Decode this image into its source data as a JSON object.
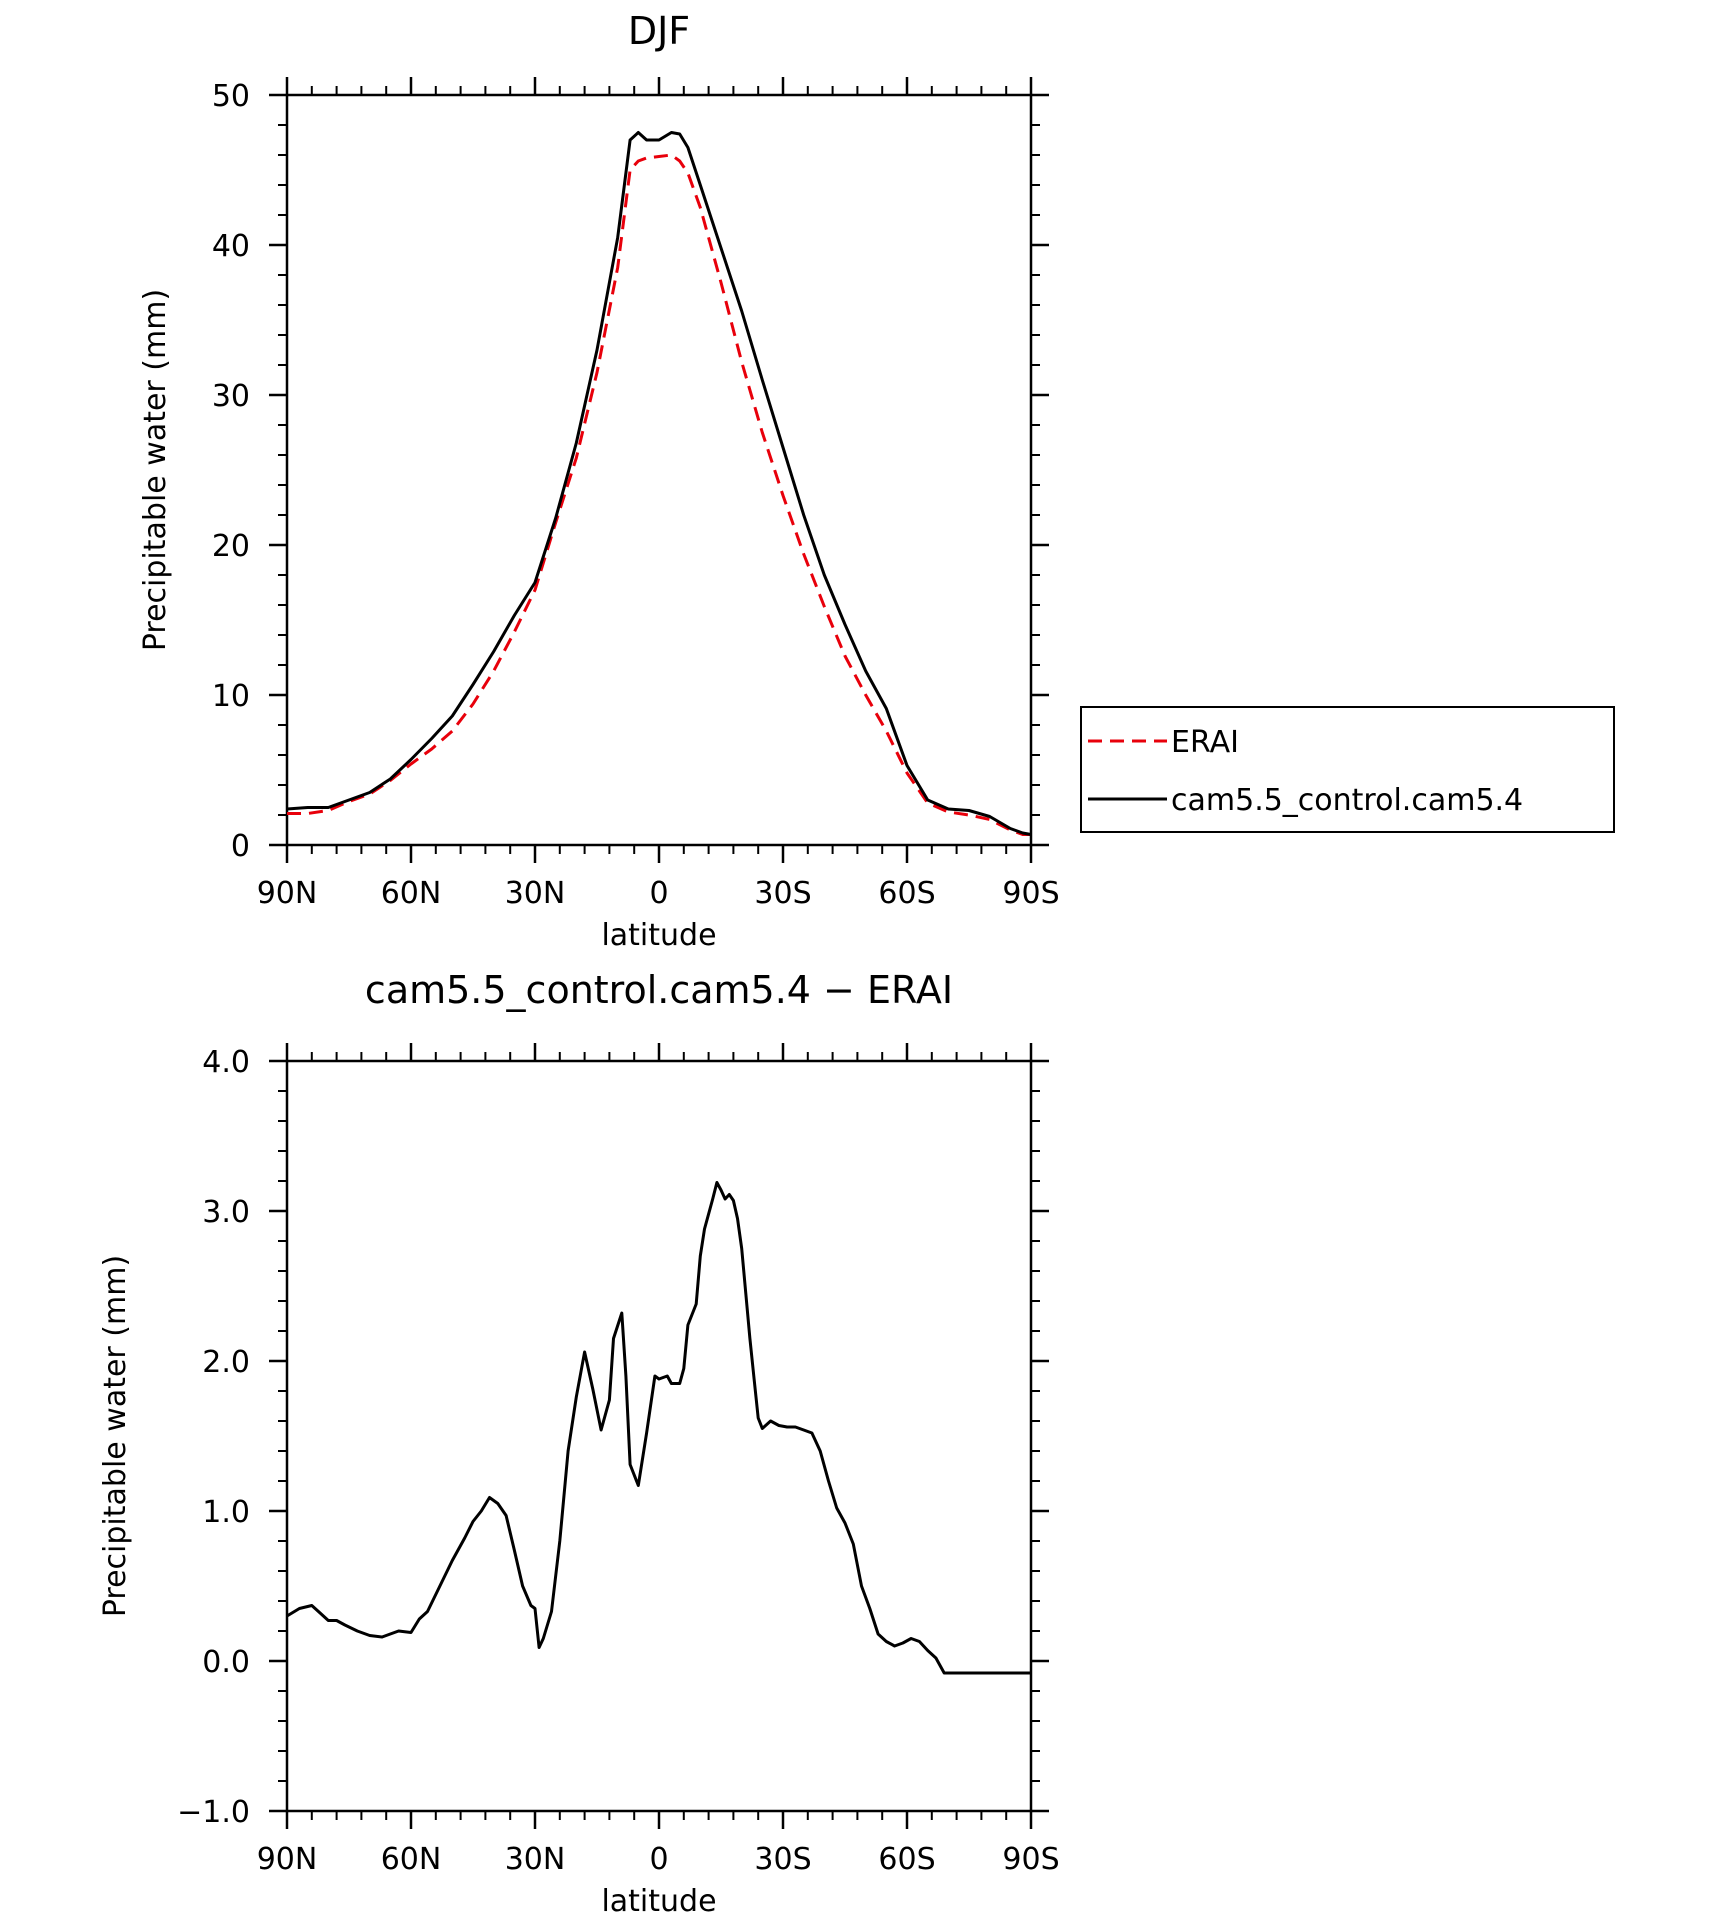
{
  "chart_data": [
    {
      "type": "line",
      "title": "DJF",
      "xlabel": "latitude",
      "ylabel": "Precipitable water (mm)",
      "xlim": [
        90,
        -90
      ],
      "ylim": [
        0,
        50
      ],
      "x_ticks": [
        90,
        60,
        30,
        0,
        -30,
        -60,
        -90
      ],
      "x_tick_labels": [
        "90N",
        "60N",
        "30N",
        "0",
        "30S",
        "60S",
        "90S"
      ],
      "y_ticks": [
        0,
        10,
        20,
        30,
        40,
        50
      ],
      "y_tick_labels": [
        "0",
        "10",
        "20",
        "30",
        "40",
        "50"
      ],
      "grid": false,
      "legend_position": "right",
      "series": [
        {
          "name": "ERAI",
          "color": "#e8000b",
          "dash": "dashed",
          "x": [
            90,
            85,
            80,
            75,
            70,
            65,
            60,
            55,
            50,
            45,
            40,
            35,
            30,
            25,
            20,
            15,
            10,
            7,
            5,
            3,
            0,
            -3,
            -5,
            -7,
            -10,
            -15,
            -20,
            -25,
            -30,
            -35,
            -40,
            -45,
            -50,
            -55,
            -60,
            -65,
            -70,
            -75,
            -80,
            -85,
            -88,
            -90
          ],
          "y": [
            2.1,
            2.1,
            2.3,
            2.9,
            3.4,
            4.3,
            5.4,
            6.4,
            7.6,
            9.4,
            11.6,
            14.2,
            17.0,
            21.5,
            25.8,
            31.5,
            38.5,
            45.0,
            45.6,
            45.8,
            45.9,
            46.0,
            45.6,
            44.8,
            42.5,
            37.5,
            32.2,
            27.5,
            23.3,
            19.4,
            15.9,
            12.6,
            10.0,
            7.6,
            4.8,
            2.8,
            2.2,
            2.0,
            1.7,
            1.0,
            0.7,
            0.7
          ]
        },
        {
          "name": "cam5.5_control.cam5.4",
          "color": "#000000",
          "dash": "solid",
          "x": [
            90,
            85,
            80,
            75,
            70,
            65,
            60,
            55,
            50,
            45,
            40,
            35,
            30,
            25,
            20,
            15,
            10,
            7,
            5,
            3,
            0,
            -3,
            -5,
            -7,
            -10,
            -15,
            -20,
            -25,
            -30,
            -35,
            -40,
            -45,
            -50,
            -55,
            -60,
            -65,
            -70,
            -75,
            -80,
            -85,
            -88,
            -90
          ],
          "y": [
            2.4,
            2.5,
            2.5,
            3.0,
            3.5,
            4.4,
            5.7,
            7.1,
            8.6,
            10.7,
            12.9,
            15.3,
            17.5,
            21.8,
            26.8,
            33.0,
            40.5,
            47.0,
            47.5,
            47.0,
            47.0,
            47.5,
            47.4,
            46.5,
            44.0,
            39.8,
            35.6,
            31.0,
            26.5,
            22.0,
            18.0,
            14.7,
            11.6,
            9.1,
            5.3,
            3.0,
            2.4,
            2.3,
            1.9,
            1.1,
            0.8,
            0.7
          ]
        }
      ]
    },
    {
      "type": "line",
      "title": "cam5.5_control.cam5.4 − ERAI",
      "xlabel": "latitude",
      "ylabel": "Precipitable water (mm)",
      "xlim": [
        90,
        -90
      ],
      "ylim": [
        -1.0,
        4.0
      ],
      "x_ticks": [
        90,
        60,
        30,
        0,
        -30,
        -60,
        -90
      ],
      "x_tick_labels": [
        "90N",
        "60N",
        "30N",
        "0",
        "30S",
        "60S",
        "90S"
      ],
      "y_ticks": [
        -1.0,
        0.0,
        1.0,
        2.0,
        3.0,
        4.0
      ],
      "y_tick_labels": [
        "−1.0",
        "0.0",
        "1.0",
        "2.0",
        "3.0",
        "4.0"
      ],
      "grid": false,
      "series": [
        {
          "color": "#000000",
          "dash": "solid",
          "x": [
            90,
            87,
            84,
            82,
            80,
            78,
            76,
            73,
            70,
            67,
            65,
            63,
            60,
            58,
            56,
            53,
            50,
            47,
            45,
            43,
            41,
            39,
            37,
            35,
            33,
            31,
            30,
            29,
            28,
            26,
            24,
            22,
            20,
            18,
            16,
            14,
            12,
            11,
            9,
            8,
            7,
            5,
            3,
            1,
            0,
            -2,
            -3,
            -5,
            -6,
            -7,
            -9,
            -10,
            -11,
            -13,
            -14,
            -15,
            -16,
            -17,
            -18,
            -19,
            -20,
            -21,
            -22,
            -23,
            -24,
            -25,
            -27,
            -29,
            -31,
            -33,
            -35,
            -37,
            -39,
            -41,
            -43,
            -45,
            -47,
            -49,
            -51,
            -53,
            -55,
            -57,
            -59,
            -61,
            -63,
            -65,
            -67,
            -69,
            -71,
            -73,
            -75,
            -77,
            -79,
            -81,
            -83,
            -85,
            -87,
            -89,
            -90
          ],
          "y": [
            0.3,
            0.35,
            0.37,
            0.32,
            0.27,
            0.27,
            0.24,
            0.2,
            0.17,
            0.16,
            0.18,
            0.2,
            0.19,
            0.28,
            0.33,
            0.5,
            0.67,
            0.82,
            0.93,
            1.0,
            1.09,
            1.05,
            0.97,
            0.74,
            0.5,
            0.37,
            0.35,
            0.09,
            0.15,
            0.33,
            0.8,
            1.4,
            1.76,
            2.06,
            1.81,
            1.54,
            1.74,
            2.15,
            2.32,
            1.9,
            1.31,
            1.17,
            1.52,
            1.9,
            1.88,
            1.9,
            1.85,
            1.85,
            1.95,
            2.24,
            2.38,
            2.7,
            2.88,
            3.08,
            3.19,
            3.14,
            3.08,
            3.11,
            3.07,
            2.95,
            2.75,
            2.45,
            2.15,
            1.88,
            1.62,
            1.55,
            1.6,
            1.57,
            1.56,
            1.56,
            1.54,
            1.52,
            1.4,
            1.2,
            1.02,
            0.92,
            0.78,
            0.5,
            0.35,
            0.18,
            0.13,
            0.1,
            0.12,
            0.15,
            0.13,
            0.07,
            0.02,
            -0.08,
            -0.08,
            -0.08,
            -0.08,
            -0.08,
            -0.08,
            -0.08,
            -0.08,
            -0.08,
            -0.08,
            -0.08,
            -0.08
          ]
        }
      ]
    }
  ]
}
